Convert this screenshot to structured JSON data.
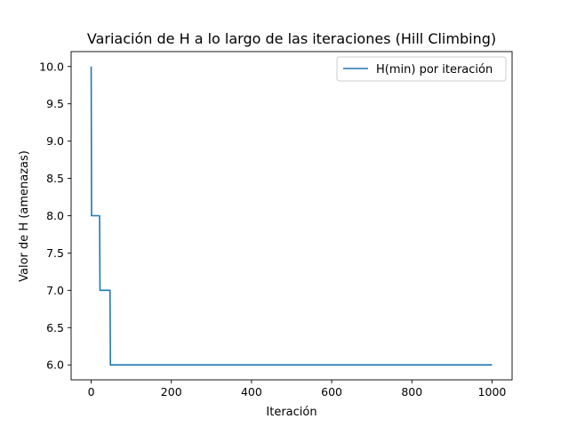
{
  "chart_data": {
    "type": "line",
    "title": "Variación de H a lo largo de las iteraciones (Hill Climbing)",
    "xlabel": "Iteración",
    "ylabel": "Valor de H (amenazas)",
    "xlim": [
      -50,
      1050
    ],
    "ylim": [
      5.8,
      10.2
    ],
    "xticks": [
      0,
      200,
      400,
      600,
      800,
      1000
    ],
    "yticks": [
      6.0,
      6.5,
      7.0,
      7.5,
      8.0,
      8.5,
      9.0,
      9.5,
      10.0
    ],
    "xtick_labels": [
      "0",
      "200",
      "400",
      "600",
      "800",
      "1000"
    ],
    "ytick_labels": [
      "6.0",
      "6.5",
      "7.0",
      "7.5",
      "8.0",
      "8.5",
      "9.0",
      "9.5",
      "10.0"
    ],
    "grid": false,
    "legend_position": "top-right",
    "series": [
      {
        "name": "H(min) por iteración",
        "color": "#1f77b4",
        "x": [
          0,
          1,
          21,
          22,
          47,
          48,
          1000
        ],
        "y": [
          10,
          8,
          8,
          7,
          7,
          6,
          6
        ]
      }
    ]
  }
}
